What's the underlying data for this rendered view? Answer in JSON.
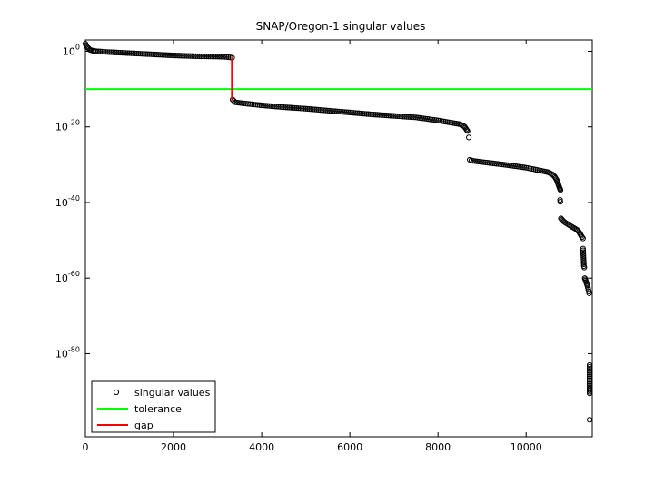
{
  "chart_data": {
    "type": "scatter",
    "title": "SNAP/Oregon-1 singular values",
    "xlabel": "",
    "ylabel": "",
    "xlim": [
      0,
      11500
    ],
    "ylim_exponent": [
      -102,
      3
    ],
    "y_scale": "log",
    "grid": false,
    "legend_position": "bottom-left",
    "x_ticks": [
      {
        "value": 0,
        "label": "0"
      },
      {
        "value": 2000,
        "label": "2000"
      },
      {
        "value": 4000,
        "label": "4000"
      },
      {
        "value": 6000,
        "label": "6000"
      },
      {
        "value": 8000,
        "label": "8000"
      },
      {
        "value": 10000,
        "label": "10000"
      }
    ],
    "y_ticks": [
      {
        "exponent": 0,
        "base": "10",
        "sup": "0"
      },
      {
        "exponent": -20,
        "base": "10",
        "sup": "-20"
      },
      {
        "exponent": -40,
        "base": "10",
        "sup": "-40"
      },
      {
        "exponent": -60,
        "base": "10",
        "sup": "-60"
      },
      {
        "exponent": -80,
        "base": "10",
        "sup": "-80"
      }
    ],
    "series": [
      {
        "name": "singular values",
        "marker": "circle",
        "color": "#000000",
        "segments": [
          {
            "x": [
              0,
              30,
              60,
              100,
              150,
              250,
              500,
              1000,
              1500,
              2000,
              2500,
              3000,
              3200,
              3330
            ],
            "log10_y": [
              2,
              1.2,
              0.9,
              0.4,
              0.2,
              0,
              -0.2,
              -0.5,
              -0.8,
              -1.1,
              -1.3,
              -1.4,
              -1.5,
              -1.7
            ]
          },
          {
            "x": [
              3340,
              3400,
              3600,
              4000,
              4500,
              5000,
              5500,
              6000,
              6500,
              7000,
              7500,
              8000,
              8300,
              8500,
              8600,
              8640,
              8670
            ],
            "log10_y": [
              -12.8,
              -13.5,
              -13.8,
              -14.3,
              -14.8,
              -15.2,
              -15.7,
              -16.2,
              -16.7,
              -17.1,
              -17.5,
              -18.3,
              -18.9,
              -19.3,
              -19.9,
              -20.6,
              -21.1
            ]
          },
          {
            "x": [
              8700
            ],
            "log10_y": [
              -22.8
            ]
          },
          {
            "x": [
              8720,
              8800,
              9000,
              9500,
              10000,
              10300,
              10500,
              10600,
              10650,
              10700,
              10730,
              10760,
              10780
            ],
            "log10_y": [
              -28.7,
              -29.0,
              -29.3,
              -30.0,
              -30.8,
              -31.5,
              -32.0,
              -32.6,
              -33.2,
              -34.2,
              -35.2,
              -36.2,
              -36.7
            ]
          },
          {
            "x": [
              10770,
              10775
            ],
            "log10_y": [
              -39.3,
              -39.8
            ]
          },
          {
            "x": [
              10790,
              10850,
              10950,
              11050,
              11150,
              11200,
              11250,
              11290
            ],
            "log10_y": [
              -44.2,
              -45.0,
              -45.8,
              -46.5,
              -47.2,
              -47.8,
              -48.8,
              -49.5
            ]
          },
          {
            "x": [
              11290,
              11300,
              11310,
              11320
            ],
            "log10_y": [
              -52.2,
              -54.5,
              -56.8,
              -57.2
            ]
          },
          {
            "x": [
              11330,
              11360,
              11390,
              11410,
              11430
            ],
            "log10_y": [
              -60.0,
              -61.0,
              -62.0,
              -63.0,
              -64.0
            ]
          },
          {
            "x": [
              11440,
              11440,
              11440,
              11440,
              11440,
              11440,
              11440,
              11440,
              11440
            ],
            "log10_y": [
              -83.0,
              -84.0,
              -85.0,
              -86.0,
              -87.0,
              -88.0,
              -89.0,
              -89.7,
              -90.5
            ]
          },
          {
            "x": [
              11440
            ],
            "log10_y": [
              -97.5
            ]
          }
        ]
      },
      {
        "name": "tolerance",
        "type": "line",
        "color": "#00ff00",
        "x": [
          0,
          11500
        ],
        "log10_y": [
          -10,
          -10
        ]
      },
      {
        "name": "gap",
        "type": "line",
        "color": "#ff0000",
        "x": [
          3330,
          3330
        ],
        "log10_y": [
          -1.7,
          -12.8
        ]
      }
    ]
  }
}
